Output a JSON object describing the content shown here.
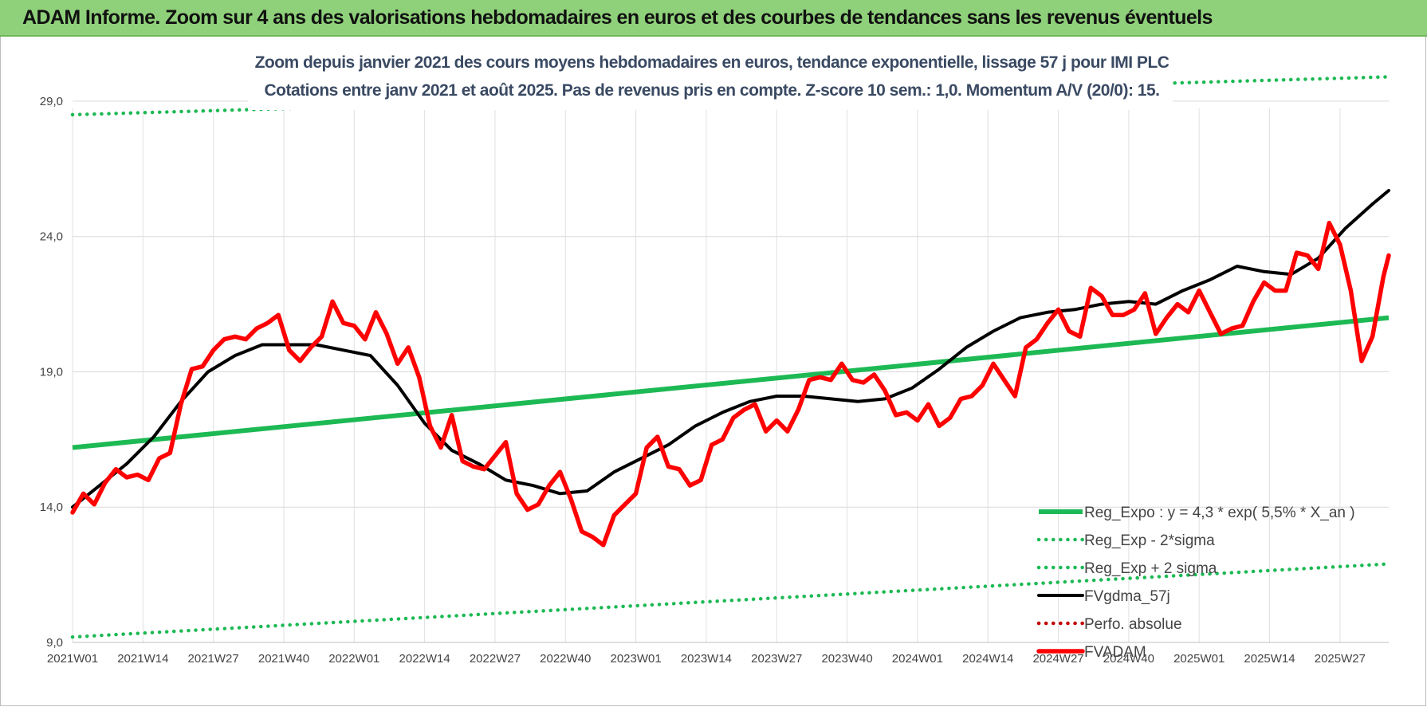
{
  "banner": {
    "title": "ADAM Informe. Zoom sur 4 ans des valorisations hebdomadaires en euros et des courbes de tendances sans les revenus éventuels"
  },
  "chart_data": {
    "type": "line",
    "title": "Zoom depuis janvier 2021 des cours moyens hebdomadaires en euros, tendance exponentielle, lissage 57 j pour IMI PLC",
    "subtitle": "Cotations entre janv 2021 et août 2025.  Pas de revenus pris en compte. Z-score 10 sem.: 1,0. Momentum A/V (20/0): 15.",
    "xlabel": "",
    "ylabel": "",
    "ylim": [
      9,
      30.5
    ],
    "grid": true,
    "legend_position": "bottom-right",
    "x_tick_labels": [
      "2021W01",
      "2021W14",
      "2021W27",
      "2021W40",
      "2022W01",
      "2022W14",
      "2022W27",
      "2022W40",
      "2023W01",
      "2023W14",
      "2023W27",
      "2023W40",
      "2024W01",
      "2024W14",
      "2024W27",
      "2024W40",
      "2025W01",
      "2025W14",
      "2025W27"
    ],
    "y_ticks": [
      9,
      14,
      19,
      24,
      29
    ],
    "y_tick_labels": [
      "9,0",
      "14,0",
      "19,0",
      "24,0",
      "29,0"
    ],
    "x_range_weeks": [
      0,
      243
    ],
    "series": [
      {
        "name": "Reg_Expo : y = 4,3 * exp( 5,5% *  X_an )",
        "style": "solid",
        "color": "#1db954",
        "x": [
          0,
          243
        ],
        "values": [
          16.2,
          21.0
        ]
      },
      {
        "name": "Reg_Exp - 2*sigma",
        "style": "dotted",
        "color": "#1db954",
        "x": [
          0,
          243
        ],
        "values": [
          9.2,
          11.9
        ]
      },
      {
        "name": "Reg_Exp + 2 sigma",
        "style": "dotted",
        "color": "#1db954",
        "x": [
          0,
          243
        ],
        "values": [
          28.5,
          29.9
        ]
      },
      {
        "name": "FVgdma_57j",
        "style": "solid",
        "color": "#000000",
        "x": [
          0,
          5,
          10,
          15,
          20,
          25,
          30,
          35,
          40,
          45,
          50,
          55,
          60,
          65,
          70,
          75,
          80,
          85,
          90,
          95,
          100,
          105,
          110,
          115,
          120,
          125,
          130,
          135,
          140,
          145,
          150,
          155,
          160,
          165,
          170,
          175,
          180,
          185,
          190,
          195,
          200,
          205,
          210,
          215,
          220,
          225,
          230,
          235,
          240,
          243
        ],
        "values": [
          14.0,
          14.8,
          15.6,
          16.6,
          17.9,
          19.0,
          19.6,
          20.0,
          20.0,
          20.0,
          19.8,
          19.6,
          18.5,
          17.1,
          16.1,
          15.6,
          15.0,
          14.8,
          14.5,
          14.6,
          15.3,
          15.8,
          16.3,
          17.0,
          17.5,
          17.9,
          18.1,
          18.1,
          18.0,
          17.9,
          18.0,
          18.4,
          19.1,
          19.9,
          20.5,
          21.0,
          21.2,
          21.3,
          21.5,
          21.6,
          21.5,
          22.0,
          22.4,
          22.9,
          22.7,
          22.6,
          23.2,
          24.3,
          25.2,
          25.7
        ]
      },
      {
        "name": "Perfo. absolue",
        "style": "dotted",
        "color": "#c00000",
        "x": [],
        "values": []
      },
      {
        "name": "FVADAM",
        "style": "solid",
        "color": "#ff0000",
        "x": [
          0,
          2,
          4,
          6,
          8,
          10,
          12,
          14,
          16,
          18,
          20,
          22,
          24,
          26,
          28,
          30,
          32,
          34,
          36,
          38,
          40,
          42,
          44,
          46,
          48,
          50,
          52,
          54,
          56,
          58,
          60,
          62,
          64,
          66,
          68,
          70,
          72,
          74,
          76,
          78,
          80,
          82,
          84,
          86,
          88,
          90,
          92,
          94,
          96,
          98,
          100,
          102,
          104,
          106,
          108,
          110,
          112,
          114,
          116,
          118,
          120,
          122,
          124,
          126,
          128,
          130,
          132,
          134,
          136,
          138,
          140,
          142,
          144,
          146,
          148,
          150,
          152,
          154,
          156,
          158,
          160,
          162,
          164,
          166,
          168,
          170,
          172,
          174,
          176,
          178,
          180,
          182,
          184,
          186,
          188,
          190,
          192,
          194,
          196,
          198,
          200,
          202,
          204,
          206,
          208,
          210,
          212,
          214,
          216,
          218,
          220,
          222,
          224,
          226,
          228,
          230,
          232,
          234,
          236,
          238,
          240,
          242,
          243
        ],
        "values": [
          13.8,
          14.5,
          14.1,
          14.9,
          15.4,
          15.1,
          15.2,
          15.0,
          15.8,
          16.0,
          17.8,
          19.1,
          19.2,
          19.8,
          20.2,
          20.3,
          20.2,
          20.6,
          20.8,
          21.1,
          19.8,
          19.4,
          19.9,
          20.3,
          21.6,
          20.8,
          20.7,
          20.2,
          21.2,
          20.4,
          19.3,
          19.9,
          18.8,
          17.0,
          16.2,
          17.4,
          15.7,
          15.5,
          15.4,
          15.9,
          16.4,
          14.5,
          13.9,
          14.1,
          14.8,
          15.3,
          14.3,
          13.1,
          12.9,
          12.6,
          13.7,
          14.1,
          14.5,
          16.2,
          16.6,
          15.5,
          15.4,
          14.8,
          15.0,
          16.3,
          16.5,
          17.3,
          17.6,
          17.8,
          16.8,
          17.2,
          16.8,
          17.6,
          18.7,
          18.8,
          18.7,
          19.3,
          18.7,
          18.6,
          18.9,
          18.3,
          17.4,
          17.5,
          17.2,
          17.8,
          17.0,
          17.3,
          18.0,
          18.1,
          18.5,
          19.3,
          18.7,
          18.1,
          19.9,
          20.2,
          20.8,
          21.3,
          20.5,
          20.3,
          22.1,
          21.8,
          21.1,
          21.1,
          21.3,
          21.9,
          20.4,
          21.0,
          21.5,
          21.2,
          22.0,
          21.2,
          20.4,
          20.6,
          20.7,
          21.6,
          22.3,
          22.0,
          22.0,
          23.4,
          23.3,
          22.8,
          24.5,
          23.7,
          22.0,
          19.4,
          20.3,
          22.5,
          23.3
        ]
      }
    ]
  }
}
